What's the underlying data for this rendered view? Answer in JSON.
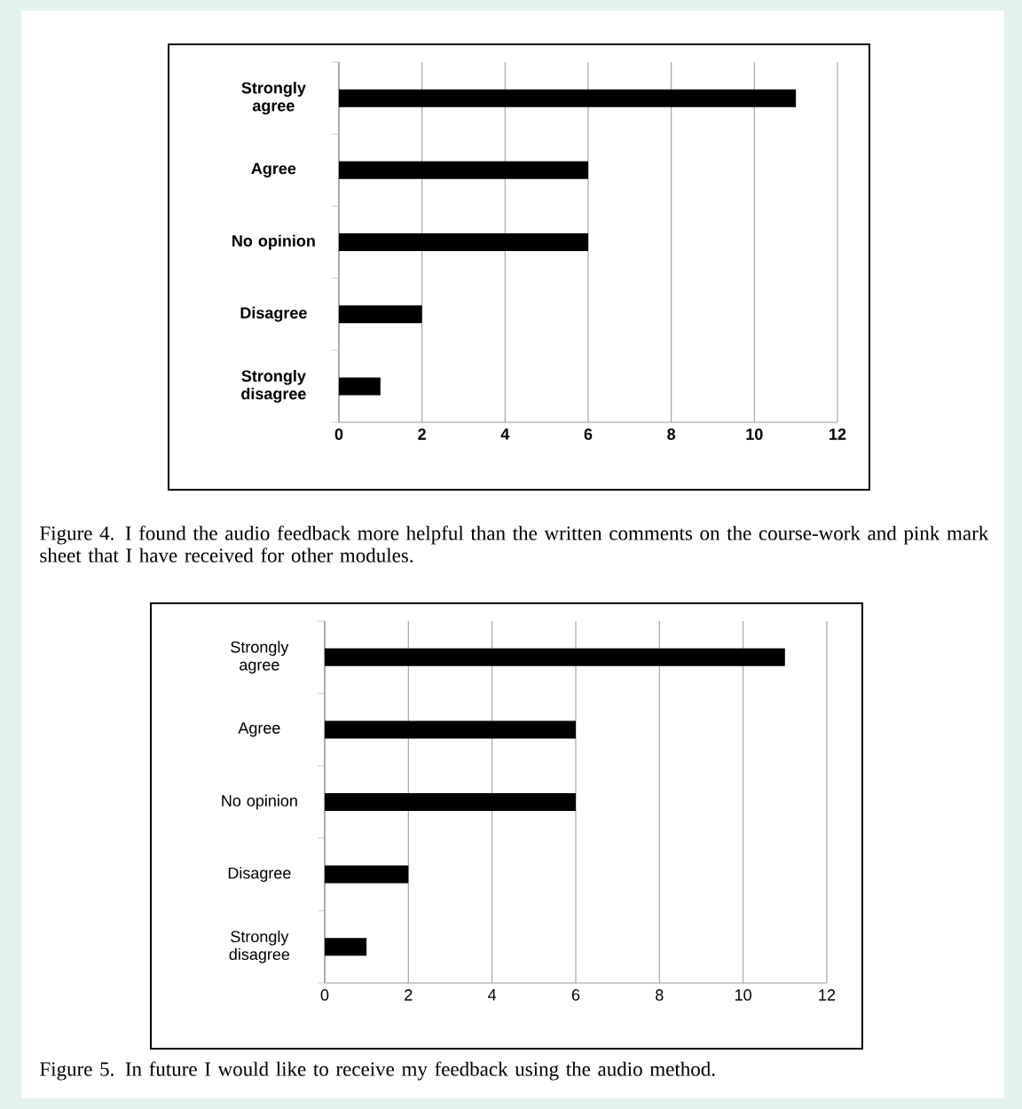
{
  "chart_data": [
    {
      "type": "bar",
      "orientation": "horizontal",
      "categories": [
        "Strongly agree",
        "Agree",
        "No opinion",
        "Disagree",
        "Strongly disagree"
      ],
      "values": [
        11,
        6,
        6,
        2,
        1
      ],
      "color": "#000000",
      "xlim": [
        0,
        12
      ],
      "xticks": [
        0,
        2,
        4,
        6,
        8,
        10,
        12
      ],
      "grid": "x",
      "annotations": [
        "Figure 4.   I found the audio feedback more helpful than the written comments on the course-work and pink mark sheet that I have received for other modules."
      ]
    },
    {
      "type": "bar",
      "orientation": "horizontal",
      "categories": [
        "Strongly agree",
        "Agree",
        "No opinion",
        "Disagree",
        "Strongly disagree"
      ],
      "values": [
        11,
        6,
        6,
        2,
        1
      ],
      "color": "#000000",
      "xlim": [
        0,
        12
      ],
      "xticks": [
        0,
        2,
        4,
        6,
        8,
        10,
        12
      ],
      "grid": "x",
      "annotations": [
        "Figure 5.   In future I would like to receive my feedback using the audio method."
      ]
    }
  ]
}
